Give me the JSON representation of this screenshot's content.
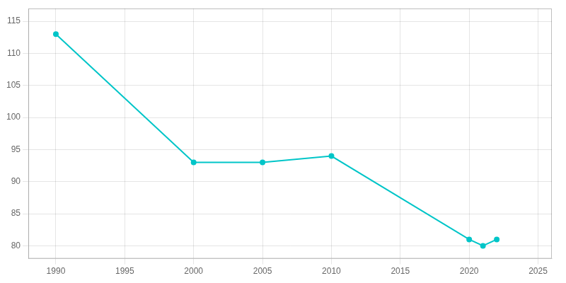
{
  "chart_data": {
    "type": "line",
    "x": [
      1990,
      2000,
      2005,
      2010,
      2020,
      2021,
      2022
    ],
    "values": [
      113,
      93,
      93,
      94,
      81,
      80,
      81
    ],
    "color": "#00c5c8",
    "marker": "circle",
    "xlim": [
      1988,
      2026
    ],
    "ylim": [
      78,
      117
    ],
    "xticks": [
      1990,
      1995,
      2000,
      2005,
      2010,
      2015,
      2020,
      2025
    ],
    "yticks": [
      80,
      85,
      90,
      95,
      100,
      105,
      110,
      115
    ],
    "grid": true
  }
}
